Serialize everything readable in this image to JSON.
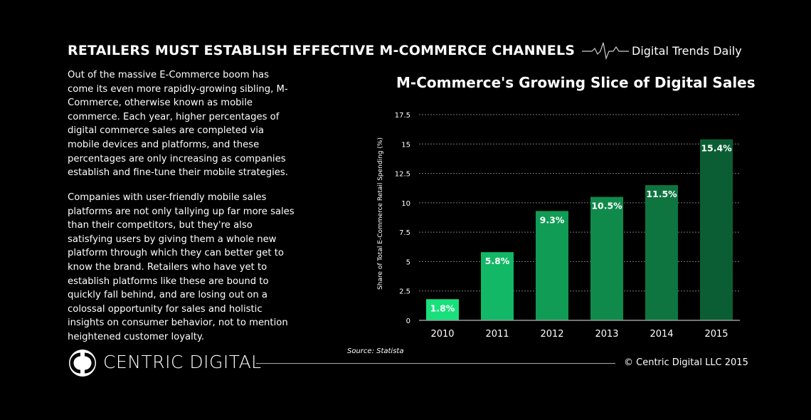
{
  "header": {
    "title": "RETAILERS MUST ESTABLISH EFFECTIVE M-COMMERCE CHANNELS",
    "brand": "Digital Trends Daily"
  },
  "body": {
    "paragraph1": "Out of the massive E-Commerce boom has come its even more rapidly-growing sibling, M-Commerce, otherwise known as mobile commerce. Each year, higher percentages of digital commerce sales are completed via mobile devices and platforms, and these percentages are only increasing as companies establish and fine-tune their mobile strategies.",
    "paragraph2": "Companies with user-friendly mobile sales platforms are not only tallying up far more sales than their competitors, but they're also satisfying users by giving them a whole new platform through which they can better get to know the brand. Retailers who have yet to establish platforms like these are bound to quickly fall behind, and are losing out on a colossal opportunity for sales and holistic insights on consumer behavior, not to mention heightened customer loyalty."
  },
  "chart_data": {
    "type": "bar",
    "title": "M-Commerce's Growing Slice of Digital Sales",
    "ylabel": "Share of Total E-Commerce Retail Spending (%)",
    "xlabel": "",
    "categories": [
      "2010",
      "2011",
      "2012",
      "2013",
      "2014",
      "2015"
    ],
    "values": [
      1.8,
      5.8,
      9.3,
      10.5,
      11.5,
      15.4
    ],
    "data_labels": [
      "1.8%",
      "5.8%",
      "9.3%",
      "10.5%",
      "11.5%",
      "15.4%"
    ],
    "bar_colors": [
      "#18e07b",
      "#12b866",
      "#109c55",
      "#0f8a4b",
      "#0e7540",
      "#0b5e33"
    ],
    "yticks": [
      "0",
      "2.5",
      "5",
      "7.5",
      "10",
      "12.5",
      "15",
      "17.5"
    ],
    "ylim": [
      0,
      17.5
    ],
    "grid": true,
    "source": "Source: Statista"
  },
  "footer": {
    "logo_text": "CENTRIC DIGITAL",
    "copyright": "© Centric Digital LLC 2015"
  }
}
